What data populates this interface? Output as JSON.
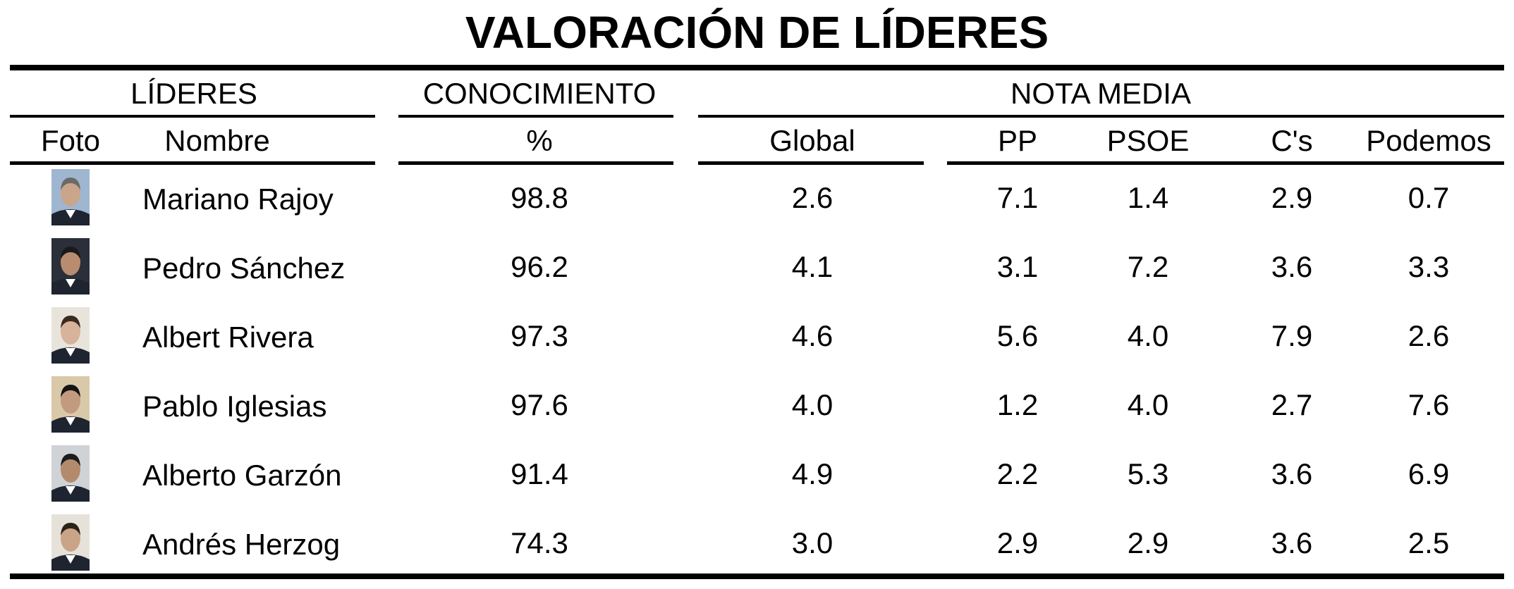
{
  "title": "VALORACIÓN DE LÍDERES",
  "groups": {
    "leaders": "LÍDERES",
    "knowledge": "CONOCIMIENTO",
    "average": "NOTA MEDIA"
  },
  "columns": {
    "photo": "Foto",
    "name": "Nombre",
    "knowledge": "%",
    "global": "Global",
    "pp": "PP",
    "psoe": "PSOE",
    "cs": "C's",
    "podemos": "Podemos"
  },
  "chart_data": {
    "type": "table",
    "title": "VALORACIÓN DE LÍDERES",
    "columns": [
      "Foto",
      "Nombre",
      "%",
      "Global",
      "PP",
      "PSOE",
      "C's",
      "Podemos"
    ],
    "rows": [
      {
        "name": "Mariano Rajoy",
        "knowledge": "98.8",
        "global": "2.6",
        "pp": "7.1",
        "psoe": "1.4",
        "cs": "2.9",
        "podemos": "0.7"
      },
      {
        "name": "Pedro Sánchez",
        "knowledge": "96.2",
        "global": "4.1",
        "pp": "3.1",
        "psoe": "7.2",
        "cs": "3.6",
        "podemos": "3.3"
      },
      {
        "name": "Albert Rivera",
        "knowledge": "97.3",
        "global": "4.6",
        "pp": "5.6",
        "psoe": "4.0",
        "cs": "7.9",
        "podemos": "2.6"
      },
      {
        "name": "Pablo Iglesias",
        "knowledge": "97.6",
        "global": "4.0",
        "pp": "1.2",
        "psoe": "4.0",
        "cs": "2.7",
        "podemos": "7.6"
      },
      {
        "name": "Alberto Garzón",
        "knowledge": "91.4",
        "global": "4.9",
        "pp": "2.2",
        "psoe": "5.3",
        "cs": "3.6",
        "podemos": "6.9"
      },
      {
        "name": "Andrés Herzog",
        "knowledge": "74.3",
        "global": "3.0",
        "pp": "2.9",
        "psoe": "2.9",
        "cs": "3.6",
        "podemos": "2.5"
      }
    ]
  }
}
